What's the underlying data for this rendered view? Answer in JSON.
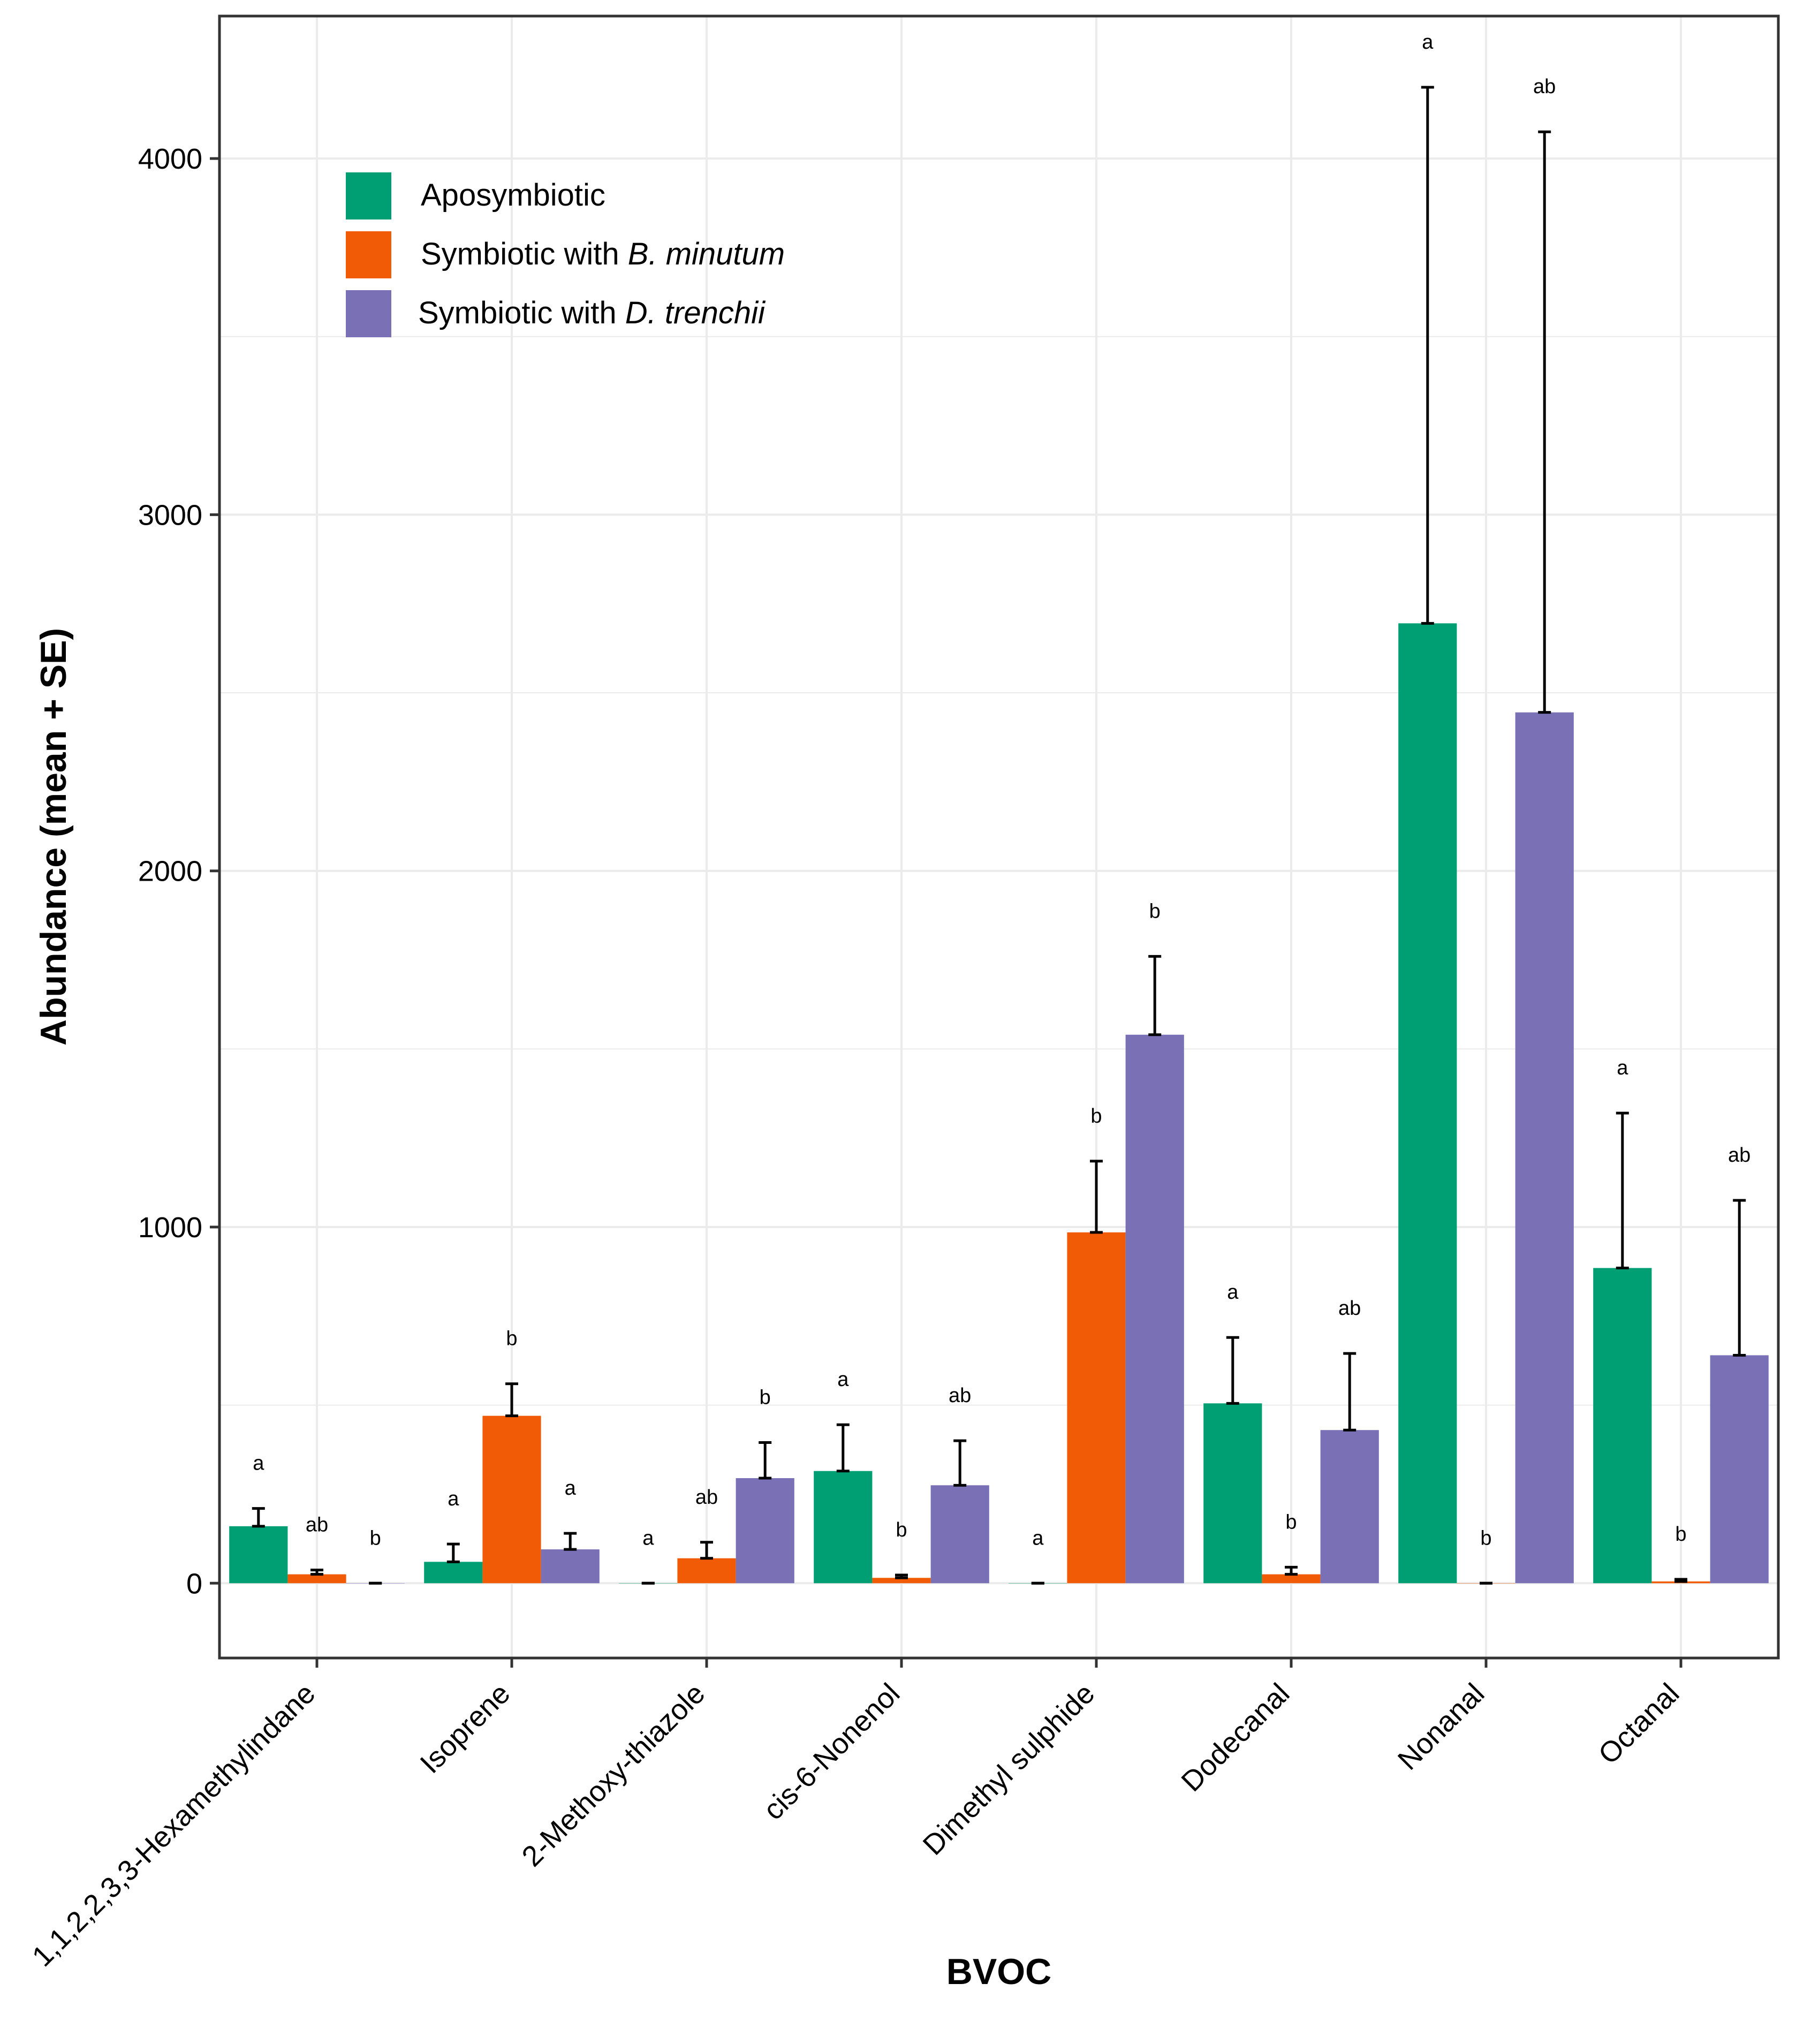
{
  "chart_data": {
    "type": "bar",
    "xlabel": "BVOC",
    "ylabel": "Abundance (mean + SE)",
    "ylim": [
      -210,
      4400
    ],
    "yticks": [
      0,
      1000,
      2000,
      3000,
      4000
    ],
    "ytick_labels": [
      "0",
      "1000",
      "2000",
      "3000",
      "4000"
    ],
    "grid": true,
    "legend_position": "top-left",
    "categories": [
      "1,1,2,2,3,3-Hexamethylindane",
      "Isoprene",
      "2-Methoxy-thiazole",
      "cis-6-Nonenol",
      "Dimethyl sulphide",
      "Dodecanal",
      "Nonanal",
      "Octanal"
    ],
    "series": [
      {
        "name": "Aposymbiotic",
        "legend_prefix": "Aposymbiotic",
        "legend_species": "",
        "color": "#009E73",
        "values": [
          160,
          60,
          0,
          315,
          0,
          505,
          2695,
          885
        ],
        "se": [
          50,
          50,
          0,
          130,
          0,
          185,
          1505,
          435
        ],
        "sig": [
          "a",
          "a",
          "a",
          "a",
          "a",
          "a",
          "a",
          "a"
        ]
      },
      {
        "name": "Symbiotic with B. minutum",
        "legend_prefix": "Symbiotic with ",
        "legend_species": "B. minutum",
        "color": "#F25B05",
        "values": [
          25,
          470,
          70,
          15,
          985,
          25,
          0,
          5
        ],
        "se": [
          12,
          90,
          45,
          8,
          200,
          20,
          0,
          6
        ],
        "sig": [
          "ab",
          "b",
          "ab",
          "b",
          "b",
          "b",
          "b",
          "b"
        ]
      },
      {
        "name": "Symbiotic with D. trenchii",
        "legend_prefix": "Symbiotic with ",
        "legend_species": "D. trenchii",
        "color": "#7A70B5",
        "values": [
          0,
          95,
          295,
          275,
          1540,
          430,
          2445,
          640
        ],
        "se": [
          0,
          45,
          100,
          125,
          220,
          215,
          1630,
          435
        ],
        "sig": [
          "b",
          "a",
          "b",
          "ab",
          "b",
          "ab",
          "ab",
          "ab"
        ]
      }
    ]
  }
}
